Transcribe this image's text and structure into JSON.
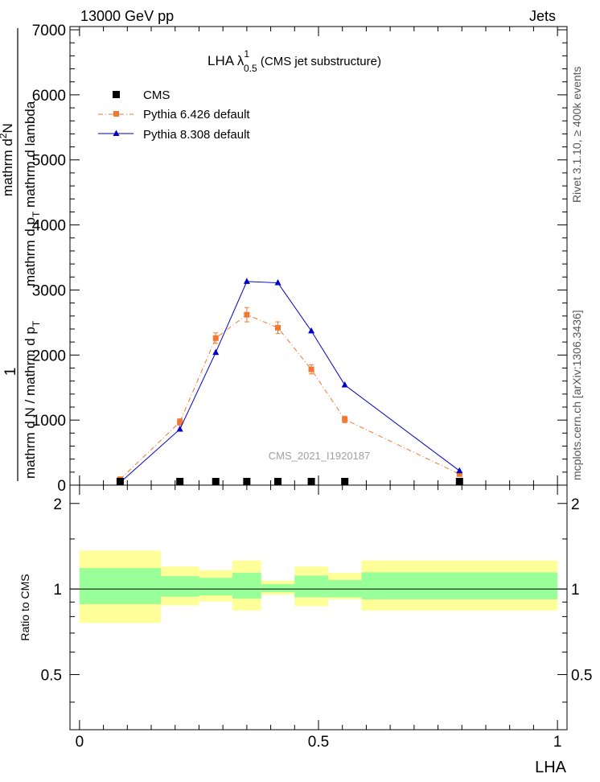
{
  "header": {
    "left": "13000 GeV pp",
    "right": "Jets"
  },
  "side_labels": {
    "rivet": "Rivet 3.1.10, ≥ 400k events",
    "mcplots": "mcplots.cern.ch [arXiv:1306.3436]"
  },
  "chart_data": {
    "type": "line",
    "title": {
      "main": "LHA λ",
      "sup": "1",
      "sub": "0.5",
      "rest": " (CMS jet substructure)"
    },
    "watermark": "CMS_2021_I1920187",
    "ylabel": {
      "frac_one": "1",
      "denominator": "mathrm d N / mathrm d p",
      "denominator_sub": "T",
      "numerator_line1": "mathrm d",
      "numerator_sup": "2",
      "numerator_line2": "N",
      "numerator_line3": "mathrm d p",
      "numerator_sub": "T",
      "numerator_line4": " mathrm d lambda"
    },
    "xlabel": "LHA",
    "xlim": [
      -0.02,
      1.02
    ],
    "ylim": [
      0,
      7050
    ],
    "y_ticks": [
      0,
      1000,
      2000,
      3000,
      4000,
      5000,
      6000,
      7000
    ],
    "y_tick_labels": [
      "0",
      "1000",
      "2000",
      "3000",
      "4000",
      "5000",
      "6000",
      "7000"
    ],
    "x_ticks": [
      0,
      0.5,
      1
    ],
    "x_tick_labels": [
      "0",
      "0.5",
      "1"
    ],
    "legend_position": "top-left",
    "series": [
      {
        "name": "CMS",
        "color": "#000000",
        "marker": "square",
        "x": [
          0.085,
          0.21,
          0.285,
          0.35,
          0.415,
          0.485,
          0.555,
          0.795
        ],
        "y": [
          0,
          0,
          0,
          0,
          0,
          0,
          0,
          0
        ]
      },
      {
        "name": "Pythia 6.426 default",
        "color": "#f07830",
        "marker": "square",
        "line": "dashdot",
        "x": [
          0.085,
          0.21,
          0.285,
          0.35,
          0.415,
          0.485,
          0.555,
          0.795
        ],
        "y": [
          90,
          970,
          2260,
          2620,
          2420,
          1780,
          1010,
          170
        ],
        "yerr": [
          30,
          50,
          80,
          110,
          90,
          70,
          50,
          30
        ]
      },
      {
        "name": "Pythia 8.308 default",
        "color": "#0000c8",
        "marker": "triangle",
        "line": "solid",
        "x": [
          0.085,
          0.21,
          0.285,
          0.35,
          0.415,
          0.485,
          0.555,
          0.795
        ],
        "y": [
          40,
          860,
          2040,
          3130,
          3110,
          2370,
          1540,
          220
        ]
      }
    ],
    "ratio": {
      "ylabel": "Ratio to CMS",
      "ylim": [
        0.32,
        2.32
      ],
      "y_ticks": [
        0.5,
        1,
        2
      ],
      "y_tick_labels": [
        "0.5",
        "1",
        "2"
      ],
      "bins": [
        {
          "lo": 0.0,
          "hi": 0.17,
          "inner": [
            0.885,
            1.185
          ],
          "outer": [
            0.76,
            1.365
          ]
        },
        {
          "lo": 0.17,
          "hi": 0.25,
          "inner": [
            0.94,
            1.11
          ],
          "outer": [
            0.875,
            1.2
          ]
        },
        {
          "lo": 0.25,
          "hi": 0.32,
          "inner": [
            0.95,
            1.095
          ],
          "outer": [
            0.905,
            1.165
          ]
        },
        {
          "lo": 0.32,
          "hi": 0.38,
          "inner": [
            0.925,
            1.14
          ],
          "outer": [
            0.84,
            1.26
          ]
        },
        {
          "lo": 0.38,
          "hi": 0.45,
          "inner": [
            0.975,
            1.04
          ],
          "outer": [
            0.955,
            1.07
          ]
        },
        {
          "lo": 0.45,
          "hi": 0.52,
          "inner": [
            0.935,
            1.115
          ],
          "outer": [
            0.87,
            1.2
          ]
        },
        {
          "lo": 0.52,
          "hi": 0.59,
          "inner": [
            0.935,
            1.075
          ],
          "outer": [
            0.92,
            1.14
          ]
        },
        {
          "lo": 0.59,
          "hi": 1.0,
          "inner": [
            0.92,
            1.145
          ],
          "outer": [
            0.84,
            1.26
          ]
        }
      ]
    }
  }
}
